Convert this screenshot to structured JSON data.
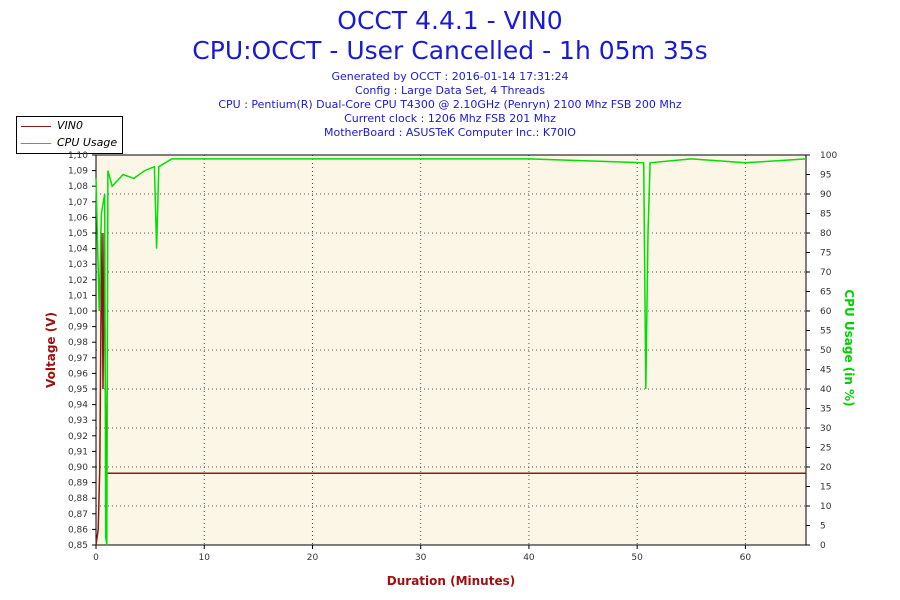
{
  "header": {
    "title": "OCCT 4.4.1 - VIN0",
    "subtitle": "CPU:OCCT - User Cancelled - 1h 05m 35s",
    "info_lines": [
      "Generated by OCCT : 2016-01-14 17:31:24",
      "Config : Large Data Set, 4 Threads",
      "CPU : Pentium(R) Dual-Core CPU T4300 @ 2.10GHz (Penryn) 2100 Mhz FSB 200 Mhz",
      "Current clock : 1206 Mhz FSB 201 Mhz",
      "MotherBoard : ASUSTeK Computer Inc.: K70IO"
    ]
  },
  "legend": {
    "items": [
      {
        "label": "VIN0",
        "color": "#8b1a1a"
      },
      {
        "label": "CPU Usage",
        "color": "#00e000"
      }
    ]
  },
  "chart_data": {
    "type": "line",
    "xlabel": "Duration (Minutes)",
    "ylabel_left": "Voltage (V)",
    "ylabel_right": "CPU Usage (in %)",
    "xlim": [
      0,
      65.6
    ],
    "ylim_left": [
      0.85,
      1.1
    ],
    "ylim_right": [
      0,
      100
    ],
    "x_ticks": [
      "0",
      "10",
      "20",
      "30",
      "40",
      "50",
      "60"
    ],
    "y_left_ticks": [
      "0,85",
      "0,86",
      "0,87",
      "0,88",
      "0,89",
      "0,90",
      "0,91",
      "0,92",
      "0,93",
      "0,94",
      "0,95",
      "0,96",
      "0,97",
      "0,98",
      "0,99",
      "1,00",
      "1,01",
      "1,02",
      "1,03",
      "1,04",
      "1,05",
      "1,06",
      "1,07",
      "1,08",
      "1,09",
      "1,10"
    ],
    "y_right_ticks": [
      "0",
      "5",
      "10",
      "15",
      "20",
      "25",
      "30",
      "35",
      "40",
      "45",
      "50",
      "55",
      "60",
      "65",
      "70",
      "75",
      "80",
      "85",
      "90",
      "95",
      "100"
    ],
    "grid": true,
    "legend_position": "top-left",
    "colors": {
      "axis_label": "#a01010",
      "cpu_axis_label": "#00d000",
      "plot_bg": "#fbf6e6",
      "grid": "#555555"
    },
    "series": [
      {
        "name": "VIN0",
        "axis": "left",
        "color": "#8b1a1a",
        "points": [
          [
            0.0,
            0.85
          ],
          [
            0.2,
            0.86
          ],
          [
            0.35,
            0.9
          ],
          [
            0.45,
            0.99
          ],
          [
            0.55,
            1.05
          ],
          [
            0.65,
            0.95
          ],
          [
            0.75,
            1.05
          ],
          [
            0.85,
            0.96
          ],
          [
            0.95,
            0.896
          ],
          [
            65.6,
            0.896
          ]
        ]
      },
      {
        "name": "CPU Usage",
        "axis": "right",
        "color": "#00e000",
        "points": [
          [
            0.0,
            94
          ],
          [
            0.3,
            60
          ],
          [
            0.5,
            85
          ],
          [
            0.8,
            90
          ],
          [
            0.9,
            2
          ],
          [
            1.0,
            0
          ],
          [
            1.1,
            96
          ],
          [
            1.5,
            92
          ],
          [
            2.5,
            95
          ],
          [
            3.5,
            94
          ],
          [
            4.5,
            96
          ],
          [
            5.4,
            97
          ],
          [
            5.6,
            76
          ],
          [
            5.8,
            97
          ],
          [
            7,
            99
          ],
          [
            20,
            99
          ],
          [
            40,
            99
          ],
          [
            50.6,
            98
          ],
          [
            50.8,
            40
          ],
          [
            51.0,
            80
          ],
          [
            51.2,
            98
          ],
          [
            55,
            99
          ],
          [
            60,
            98
          ],
          [
            65.6,
            99
          ]
        ]
      }
    ]
  }
}
